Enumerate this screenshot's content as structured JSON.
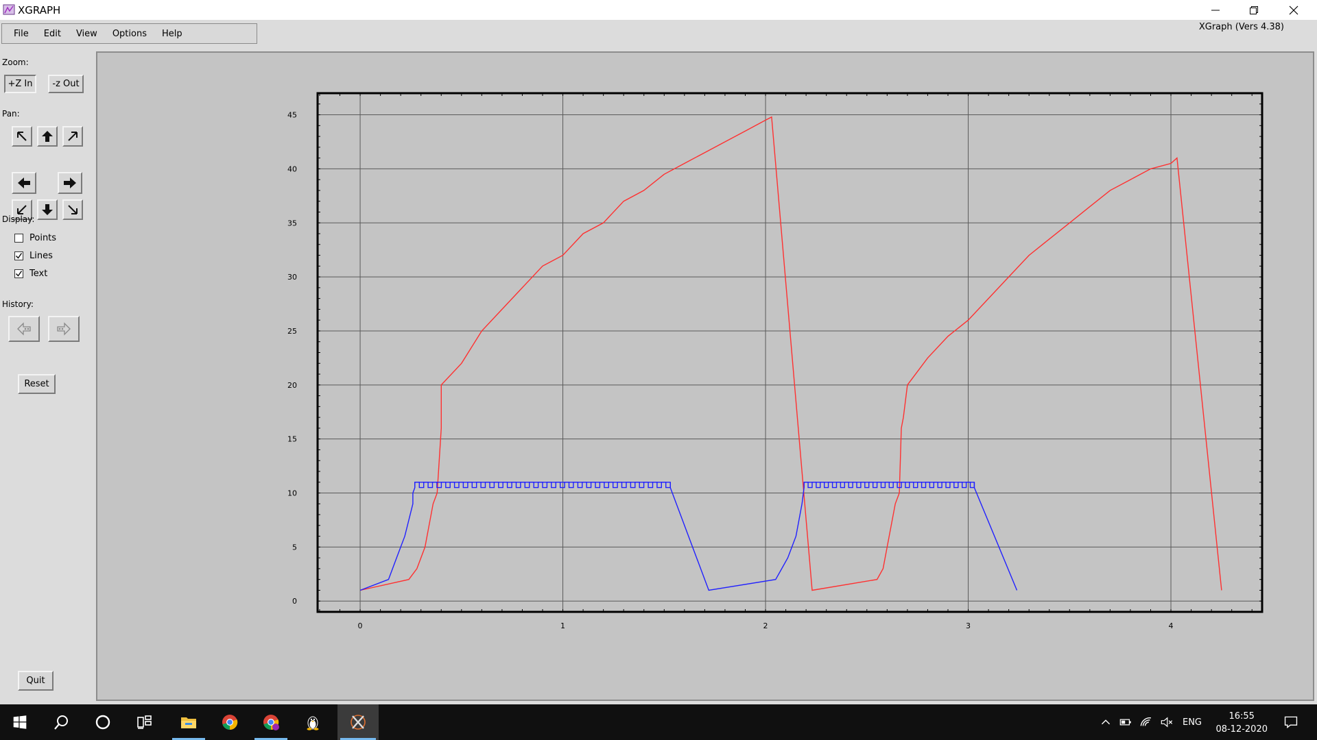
{
  "window": {
    "title": "XGRAPH",
    "controls": [
      "minimize",
      "restore",
      "close"
    ]
  },
  "menu": {
    "items": [
      "File",
      "Edit",
      "View",
      "Options",
      "Help"
    ]
  },
  "version": "XGraph (Vers 4.38)",
  "panel": {
    "zoom_label": "Zoom:",
    "zoom_in": "+Z In",
    "zoom_out": "-z Out",
    "pan_label": "Pan:",
    "pan_icons": [
      "arrow-up-left-icon",
      "arrow-up-icon",
      "arrow-up-right-icon",
      "arrow-left-icon",
      "arrow-right-icon",
      "arrow-down-left-icon",
      "arrow-down-icon",
      "arrow-down-right-icon"
    ],
    "display_label": "Display:",
    "display_options": [
      {
        "label": "Points",
        "checked": false
      },
      {
        "label": "Lines",
        "checked": true
      },
      {
        "label": "Text",
        "checked": true
      }
    ],
    "history_label": "History:",
    "history_back_icon": "history-back-icon",
    "history_forward_icon": "history-forward-icon",
    "reset": "Reset",
    "quit": "Quit"
  },
  "chart_data": {
    "type": "line",
    "xlim": [
      -0.21,
      4.45
    ],
    "ylim": [
      -1,
      47
    ],
    "x_ticks": [
      "0",
      "1",
      "2",
      "3",
      "4"
    ],
    "y_ticks": [
      "0",
      "5",
      "10",
      "15",
      "20",
      "25",
      "30",
      "35",
      "40",
      "45"
    ],
    "grid": true,
    "series": [
      {
        "color": "#ff3030",
        "x": [
          0.0,
          0.24,
          0.28,
          0.32,
          0.36,
          0.38,
          0.4,
          0.4,
          0.4,
          0.5,
          0.6,
          0.7,
          0.8,
          0.9,
          1.0,
          1.1,
          1.2,
          1.3,
          1.4,
          1.5,
          1.6,
          1.7,
          1.8,
          1.9,
          2.0,
          2.03,
          2.23,
          2.55,
          2.58,
          2.6,
          2.64,
          2.66,
          2.67,
          2.68,
          2.7,
          2.8,
          2.9,
          3.0,
          3.1,
          3.2,
          3.3,
          3.4,
          3.5,
          3.6,
          3.7,
          3.8,
          3.9,
          4.0,
          4.03,
          4.25
        ],
        "y": [
          1,
          2,
          3,
          5,
          9,
          10,
          16,
          17,
          20,
          22,
          25,
          27,
          29,
          31,
          32,
          34,
          35,
          37,
          38,
          39.5,
          40.5,
          41.5,
          42.5,
          43.5,
          44.5,
          44.8,
          1,
          2,
          3,
          5,
          9,
          10,
          16,
          17,
          20,
          22.5,
          24.5,
          26,
          28,
          30,
          32,
          33.5,
          35,
          36.5,
          38,
          39,
          40,
          40.5,
          41,
          1
        ]
      },
      {
        "color": "#2020ff",
        "x": [
          0.0,
          0.14,
          0.18,
          0.22,
          0.26,
          0.26,
          0.27,
          0.27,
          1.53,
          1.53,
          1.72,
          2.05,
          2.11,
          2.15,
          2.18,
          2.19,
          2.19,
          3.03,
          3.03,
          3.24
        ],
        "y": [
          1,
          2,
          4,
          6,
          9,
          10,
          10.5,
          11,
          11,
          10.5,
          1,
          2,
          4,
          6,
          9,
          10.5,
          11,
          11,
          10.5,
          1
        ]
      }
    ]
  },
  "taskbar": {
    "icons": [
      "windows-start-icon",
      "search-icon",
      "cortana-icon",
      "task-view-icon",
      "file-explorer-icon",
      "chrome-icon",
      "chrome-profile-icon",
      "linux-penguin-icon",
      "xlaunch-icon"
    ],
    "tray": "ENG",
    "time": "16:55",
    "date": "08-12-2020"
  }
}
